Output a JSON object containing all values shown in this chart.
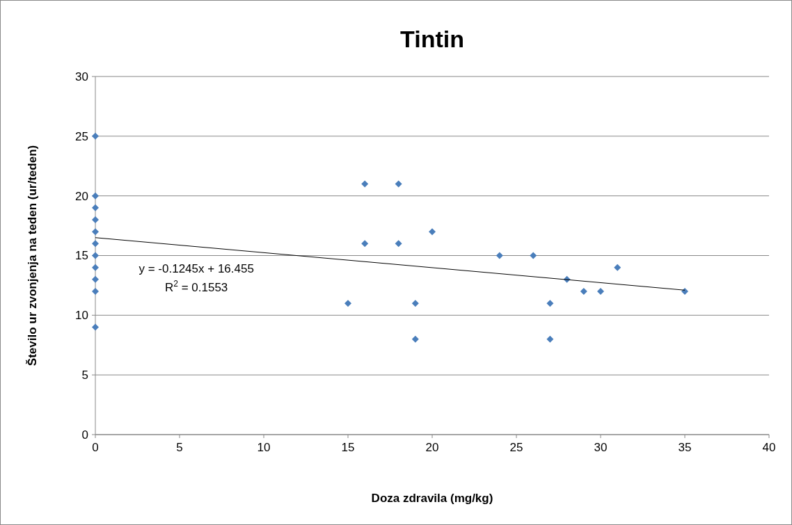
{
  "chart_data": {
    "type": "scatter",
    "title": "Tintin",
    "xlabel": "Doza zdravila (mg/kg)",
    "ylabel": "Število ur zvonjenja na teden (ur/teden)",
    "xlim": [
      0,
      40
    ],
    "xticks": [
      0,
      5,
      10,
      15,
      20,
      25,
      30,
      35,
      40
    ],
    "ylim": [
      0,
      30
    ],
    "yticks": [
      0,
      5,
      10,
      15,
      20,
      25,
      30
    ],
    "grid": "y",
    "marker": "diamond",
    "series": [
      {
        "color": "#4a7ebb",
        "x": [
          0,
          0,
          0,
          0,
          0,
          0,
          0,
          0,
          0,
          0,
          0,
          16,
          18,
          16,
          18,
          20,
          24,
          26,
          15,
          19,
          19,
          27,
          27,
          28,
          29,
          30,
          31,
          35
        ],
        "values": [
          25,
          20,
          19,
          18,
          17,
          16,
          15,
          14,
          13,
          12,
          9,
          21,
          21,
          16,
          16,
          17,
          15,
          15,
          11,
          11,
          8,
          11,
          8,
          13,
          12,
          12,
          14,
          12
        ]
      },
      {
        "type": "line",
        "color": "#000000",
        "x": [
          0,
          35
        ],
        "values": [
          16.5,
          12.1
        ],
        "marker": "none"
      }
    ],
    "annotations": [
      "y = -0.1245x + 16.455",
      "R$^{2}$ = 0.1553"
    ]
  }
}
